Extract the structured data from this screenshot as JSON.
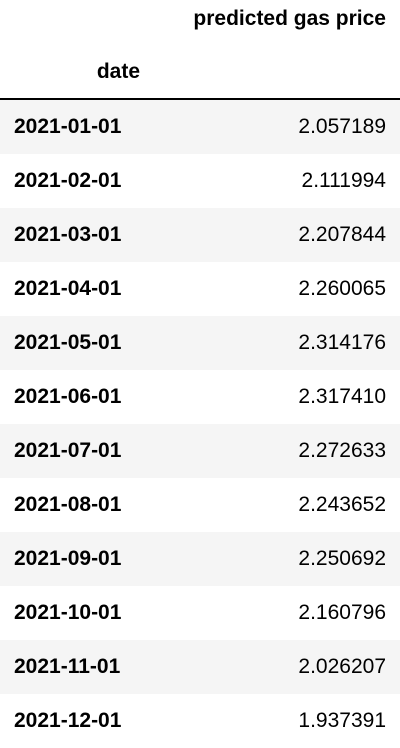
{
  "table": {
    "column_header": "predicted gas price",
    "index_name": "date",
    "rows": [
      {
        "date": "2021-01-01",
        "value": "2.057189"
      },
      {
        "date": "2021-02-01",
        "value": "2.111994"
      },
      {
        "date": "2021-03-01",
        "value": "2.207844"
      },
      {
        "date": "2021-04-01",
        "value": "2.260065"
      },
      {
        "date": "2021-05-01",
        "value": "2.314176"
      },
      {
        "date": "2021-06-01",
        "value": "2.317410"
      },
      {
        "date": "2021-07-01",
        "value": "2.272633"
      },
      {
        "date": "2021-08-01",
        "value": "2.243652"
      },
      {
        "date": "2021-09-01",
        "value": "2.250692"
      },
      {
        "date": "2021-10-01",
        "value": "2.160796"
      },
      {
        "date": "2021-11-01",
        "value": "2.026207"
      },
      {
        "date": "2021-12-01",
        "value": "1.937391"
      }
    ]
  }
}
